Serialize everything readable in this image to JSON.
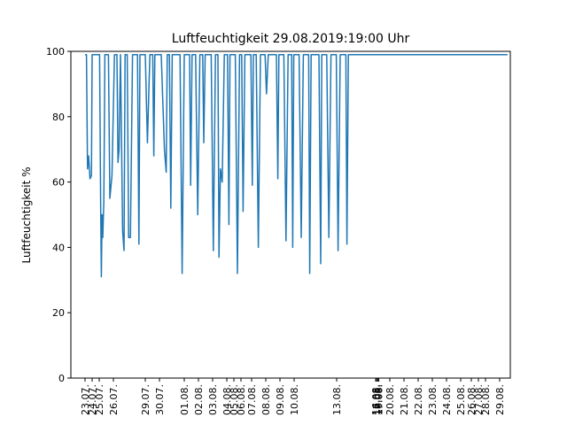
{
  "chart_data": {
    "type": "line",
    "title": "Luftfeuchtigkeit 29.08.2019:19:00 Uhr",
    "ylabel": "Luftfeuchtigkeit %",
    "xlabel": "",
    "ylim": [
      0,
      100
    ],
    "yticks": [
      0,
      20,
      40,
      60,
      80,
      100
    ],
    "grid": false,
    "legend": "none",
    "x_range": [
      -4,
      120
    ],
    "xticks": [
      {
        "t": 0,
        "label": "23.07."
      },
      {
        "t": 2,
        "label": "24.07."
      },
      {
        "t": 4,
        "label": "25.07."
      },
      {
        "t": 8,
        "label": "26.07."
      },
      {
        "t": 17,
        "label": "29.07."
      },
      {
        "t": 21,
        "label": "30.07."
      },
      {
        "t": 28,
        "label": "01.08."
      },
      {
        "t": 32,
        "label": "02.08."
      },
      {
        "t": 36,
        "label": "03.08."
      },
      {
        "t": 40,
        "label": "04.08."
      },
      {
        "t": 42,
        "label": "05.08."
      },
      {
        "t": 44,
        "label": "06.08."
      },
      {
        "t": 47,
        "label": "07.08."
      },
      {
        "t": 51,
        "label": "08.08."
      },
      {
        "t": 55,
        "label": "09.08."
      },
      {
        "t": 59,
        "label": "10.08."
      },
      {
        "t": 71,
        "label": "13.08."
      },
      {
        "t": 82,
        "label": "16.08."
      },
      {
        "t": 82.3,
        "label": "17.08."
      },
      {
        "t": 82.6,
        "label": "18.08."
      },
      {
        "t": 82.9,
        "label": "19.08."
      },
      {
        "t": 86,
        "label": "20.08."
      },
      {
        "t": 90,
        "label": "21.08."
      },
      {
        "t": 94,
        "label": "22.08."
      },
      {
        "t": 98,
        "label": "23.08."
      },
      {
        "t": 102,
        "label": "24.08."
      },
      {
        "t": 106,
        "label": "25.08."
      },
      {
        "t": 109,
        "label": "26.08."
      },
      {
        "t": 111,
        "label": "27.08."
      },
      {
        "t": 113,
        "label": "28.08."
      },
      {
        "t": 117,
        "label": "29.08."
      }
    ],
    "series": [
      {
        "color": "#1f77b4",
        "x": [
          0,
          0.4,
          0.7,
          1.0,
          1.4,
          1.8,
          2.0,
          2.4,
          3.5,
          4.1,
          4.4,
          4.6,
          4.8,
          5.0,
          5.3,
          5.6,
          5.9,
          6.2,
          6.6,
          7.0,
          7.6,
          8.3,
          9.0,
          9.3,
          9.6,
          10.0,
          10.6,
          11.0,
          11.3,
          11.6,
          11.9,
          12.3,
          12.8,
          13.4,
          14.2,
          14.8,
          15.2,
          15.5,
          15.8,
          16.1,
          16.5,
          17.0,
          17.6,
          18.3,
          18.8,
          19.1,
          19.4,
          19.7,
          20.0,
          20.6,
          21.5,
          22.4,
          22.9,
          23.2,
          23.5,
          23.8,
          24.2,
          24.6,
          25.1,
          25.6,
          26.2,
          26.8,
          27.4,
          28.0,
          28.6,
          29.1,
          29.5,
          29.8,
          30.2,
          30.6,
          31.2,
          31.8,
          32.4,
          32.9,
          33.2,
          33.5,
          33.9,
          34.4,
          35.0,
          35.6,
          36.2,
          36.8,
          37.2,
          37.5,
          37.8,
          38.2,
          38.7,
          39.3,
          39.8,
          40.2,
          40.6,
          40.9,
          41.2,
          41.8,
          42.4,
          43.0,
          43.6,
          43.9,
          44.2,
          44.6,
          45.1,
          45.6,
          46.2,
          46.8,
          47.2,
          47.5,
          47.8,
          48.3,
          48.9,
          49.5,
          50.1,
          50.5,
          50.8,
          51.2,
          51.7,
          52.2,
          52.8,
          53.4,
          54.0,
          54.4,
          54.7,
          55.1,
          55.6,
          56.1,
          56.7,
          57.3,
          57.9,
          58.3,
          58.6,
          58.9,
          59.3,
          59.8,
          60.4,
          61.0,
          61.6,
          62.2,
          62.7,
          63.1,
          63.4,
          63.8,
          64.3,
          64.8,
          65.4,
          66.0,
          66.5,
          66.8,
          67.2,
          67.6,
          68.2,
          68.8,
          69.4,
          69.9,
          70.2,
          70.5,
          70.9,
          71.4,
          72.0,
          72.6,
          73.2,
          73.6,
          73.9,
          74.3,
          74.8,
          75.4,
          76.0,
          76.6,
          77.1,
          77.4,
          77.8,
          78.3,
          78.9,
          79.5,
          80.1,
          80.6,
          81.0,
          81.5,
          82.1,
          82.7,
          83.3,
          83.9,
          84.4,
          84.8,
          85.1,
          85.5,
          86.0,
          86.6,
          87.2,
          87.8,
          88.3,
          88.6,
          89.0,
          89.5,
          90.1,
          90.7,
          91.3,
          91.8,
          92.1,
          92.5,
          93.0,
          93.6,
          94.2,
          94.8,
          95.3,
          95.6,
          96.0,
          96.5,
          97.0,
          97.6,
          98.2,
          98.8,
          99.3,
          99.6,
          100.0,
          100.5,
          101.1,
          101.7,
          102.3,
          102.8,
          103.1,
          103.5,
          104.0,
          104.6,
          105.2,
          105.8,
          106.3,
          106.6,
          107.0,
          107.5,
          108.1,
          108.7,
          109.3,
          109.8,
          110.1,
          110.5,
          111.0,
          111.6,
          112.2,
          112.8,
          113.3,
          113.6,
          114.0,
          114.5,
          115.1,
          115.7,
          116.3,
          116.8,
          117.1,
          117.5,
          118.0,
          118.6,
          119.2
        ],
        "y": [
          99,
          99,
          64,
          68,
          61,
          62,
          99,
          99,
          99,
          99,
          54,
          31,
          50,
          43,
          54,
          99,
          99,
          99,
          99,
          55,
          62,
          99,
          99,
          66,
          70,
          99,
          45,
          39,
          99,
          99,
          99,
          43,
          43,
          99,
          99,
          99,
          41,
          99,
          99,
          99,
          99,
          99,
          72,
          99,
          99,
          99,
          68,
          99,
          99,
          99,
          99,
          70,
          63,
          99,
          99,
          99,
          52,
          99,
          99,
          99,
          99,
          99,
          32,
          99,
          99,
          99,
          99,
          59,
          99,
          99,
          99,
          50,
          99,
          99,
          99,
          72,
          99,
          99,
          99,
          99,
          39,
          99,
          99,
          99,
          37,
          64,
          60,
          99,
          99,
          99,
          47,
          99,
          99,
          99,
          99,
          32,
          99,
          99,
          99,
          51,
          99,
          99,
          99,
          99,
          59,
          99,
          99,
          99,
          40,
          99,
          99,
          99,
          99,
          87,
          99,
          99,
          99,
          99,
          99,
          61,
          99,
          99,
          99,
          99,
          42,
          99,
          99,
          99,
          40,
          99,
          99,
          99,
          99,
          43,
          99,
          99,
          99,
          99,
          32,
          99,
          99,
          99,
          99,
          99,
          35,
          99,
          99,
          99,
          99,
          43,
          99,
          99,
          99,
          99,
          99,
          39,
          99,
          99,
          99,
          99,
          41,
          99,
          99,
          99,
          99,
          99,
          99,
          99,
          99,
          99,
          99,
          99,
          99,
          99,
          99,
          99,
          99,
          99,
          99,
          99,
          99,
          99,
          99,
          99,
          99,
          99,
          99,
          99,
          99,
          99,
          99,
          99,
          99,
          99,
          99,
          99,
          99,
          99,
          99,
          99,
          99,
          99,
          99,
          99,
          99,
          99,
          99,
          99,
          99,
          99,
          99,
          99,
          99,
          99,
          99,
          99,
          99,
          99,
          99,
          99,
          99,
          99,
          99,
          99,
          99,
          99,
          99,
          99,
          99,
          99,
          99,
          99,
          99,
          99,
          99,
          99,
          99,
          99,
          99,
          99,
          99,
          99,
          99,
          99,
          99,
          99,
          99,
          99,
          99,
          99,
          99
        ]
      }
    ]
  }
}
